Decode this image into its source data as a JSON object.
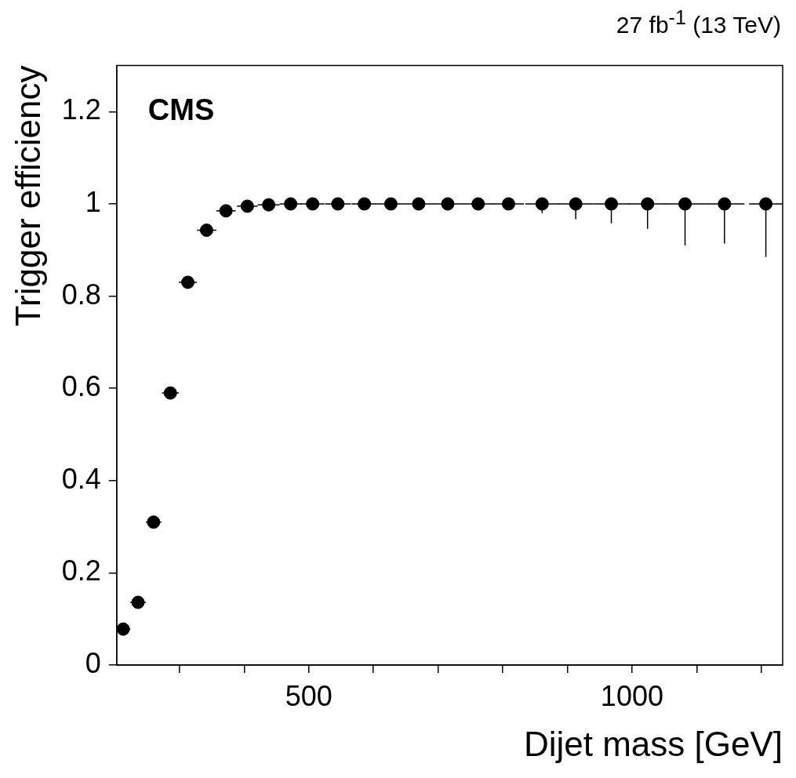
{
  "chart_data": {
    "type": "scatter",
    "title": "27 fb$^{-1}$ (13 TeV)",
    "xlabel": "Dijet mass [GeV]",
    "ylabel": "Trigger efficiency",
    "annotations": [
      "CMS"
    ],
    "x": [
      213,
      236,
      260,
      286,
      313,
      342,
      372,
      405,
      438,
      472,
      506,
      545,
      586,
      627,
      670,
      715,
      762,
      809,
      861,
      913,
      968,
      1024,
      1082,
      1143,
      1207
    ],
    "values": [
      0.078,
      0.136,
      0.31,
      0.59,
      0.83,
      0.943,
      0.985,
      0.995,
      0.998,
      1,
      1,
      1,
      1,
      1,
      1,
      1,
      1,
      1,
      1,
      1,
      1,
      1,
      1,
      1,
      1
    ],
    "errors": [
      null,
      null,
      null,
      null,
      null,
      null,
      null,
      null,
      null,
      null,
      null,
      null,
      null,
      null,
      null,
      null,
      null,
      [
        0.99,
        1
      ],
      [
        0.98,
        1
      ],
      [
        0.967,
        1
      ],
      [
        0.958,
        1
      ],
      [
        0.946,
        1
      ],
      [
        0.91,
        1
      ],
      [
        0.914,
        1
      ],
      [
        0.885,
        1
      ]
    ],
    "xerrors": [
      11,
      12,
      12,
      13,
      14,
      15,
      15,
      16,
      17,
      17,
      18,
      20,
      20,
      21,
      22,
      23,
      24,
      24,
      26,
      27,
      28,
      29,
      30,
      31,
      26
    ],
    "color": "#000000",
    "marker": "circle",
    "grid": false,
    "legend": false,
    "xlim": [
      203,
      1233
    ],
    "xticks": [
      {
        "value": 300,
        "label": null
      },
      {
        "value": 400,
        "label": null
      },
      500,
      {
        "value": 600,
        "label": null
      },
      {
        "value": 700,
        "label": null
      },
      {
        "value": 800,
        "label": null
      },
      {
        "value": 900,
        "label": null
      },
      1000,
      {
        "value": 1100,
        "label": null
      },
      {
        "value": 1200,
        "label": null
      }
    ],
    "ylim": [
      0,
      1.3
    ],
    "yticks": [
      0,
      0.2,
      0.4,
      0.6,
      0.8,
      1,
      1.2
    ]
  }
}
